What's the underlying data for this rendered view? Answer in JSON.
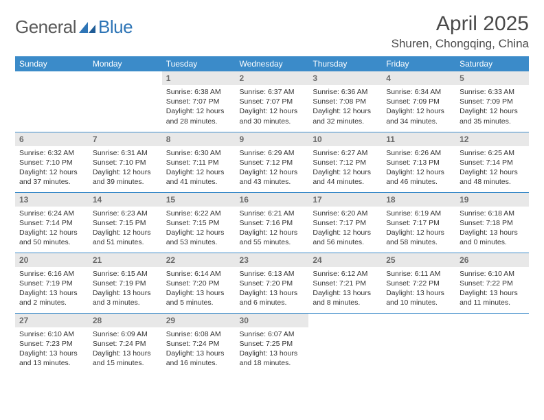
{
  "logo": {
    "general": "General",
    "blue": "Blue"
  },
  "title": "April 2025",
  "location": "Shuren, Chongqing, China",
  "colors": {
    "header_bg": "#3b8bc9",
    "header_text": "#ffffff",
    "daynum_bg": "#e8e8e8",
    "daynum_text": "#6a6a6a",
    "row_border": "#3b8bc9",
    "logo_general": "#5a5a5a",
    "logo_blue": "#2e75b6"
  },
  "day_headers": [
    "Sunday",
    "Monday",
    "Tuesday",
    "Wednesday",
    "Thursday",
    "Friday",
    "Saturday"
  ],
  "weeks": [
    [
      null,
      null,
      {
        "n": "1",
        "sr": "6:38 AM",
        "ss": "7:07 PM",
        "dl": "12 hours and 28 minutes."
      },
      {
        "n": "2",
        "sr": "6:37 AM",
        "ss": "7:07 PM",
        "dl": "12 hours and 30 minutes."
      },
      {
        "n": "3",
        "sr": "6:36 AM",
        "ss": "7:08 PM",
        "dl": "12 hours and 32 minutes."
      },
      {
        "n": "4",
        "sr": "6:34 AM",
        "ss": "7:09 PM",
        "dl": "12 hours and 34 minutes."
      },
      {
        "n": "5",
        "sr": "6:33 AM",
        "ss": "7:09 PM",
        "dl": "12 hours and 35 minutes."
      }
    ],
    [
      {
        "n": "6",
        "sr": "6:32 AM",
        "ss": "7:10 PM",
        "dl": "12 hours and 37 minutes."
      },
      {
        "n": "7",
        "sr": "6:31 AM",
        "ss": "7:10 PM",
        "dl": "12 hours and 39 minutes."
      },
      {
        "n": "8",
        "sr": "6:30 AM",
        "ss": "7:11 PM",
        "dl": "12 hours and 41 minutes."
      },
      {
        "n": "9",
        "sr": "6:29 AM",
        "ss": "7:12 PM",
        "dl": "12 hours and 43 minutes."
      },
      {
        "n": "10",
        "sr": "6:27 AM",
        "ss": "7:12 PM",
        "dl": "12 hours and 44 minutes."
      },
      {
        "n": "11",
        "sr": "6:26 AM",
        "ss": "7:13 PM",
        "dl": "12 hours and 46 minutes."
      },
      {
        "n": "12",
        "sr": "6:25 AM",
        "ss": "7:14 PM",
        "dl": "12 hours and 48 minutes."
      }
    ],
    [
      {
        "n": "13",
        "sr": "6:24 AM",
        "ss": "7:14 PM",
        "dl": "12 hours and 50 minutes."
      },
      {
        "n": "14",
        "sr": "6:23 AM",
        "ss": "7:15 PM",
        "dl": "12 hours and 51 minutes."
      },
      {
        "n": "15",
        "sr": "6:22 AM",
        "ss": "7:15 PM",
        "dl": "12 hours and 53 minutes."
      },
      {
        "n": "16",
        "sr": "6:21 AM",
        "ss": "7:16 PM",
        "dl": "12 hours and 55 minutes."
      },
      {
        "n": "17",
        "sr": "6:20 AM",
        "ss": "7:17 PM",
        "dl": "12 hours and 56 minutes."
      },
      {
        "n": "18",
        "sr": "6:19 AM",
        "ss": "7:17 PM",
        "dl": "12 hours and 58 minutes."
      },
      {
        "n": "19",
        "sr": "6:18 AM",
        "ss": "7:18 PM",
        "dl": "13 hours and 0 minutes."
      }
    ],
    [
      {
        "n": "20",
        "sr": "6:16 AM",
        "ss": "7:19 PM",
        "dl": "13 hours and 2 minutes."
      },
      {
        "n": "21",
        "sr": "6:15 AM",
        "ss": "7:19 PM",
        "dl": "13 hours and 3 minutes."
      },
      {
        "n": "22",
        "sr": "6:14 AM",
        "ss": "7:20 PM",
        "dl": "13 hours and 5 minutes."
      },
      {
        "n": "23",
        "sr": "6:13 AM",
        "ss": "7:20 PM",
        "dl": "13 hours and 6 minutes."
      },
      {
        "n": "24",
        "sr": "6:12 AM",
        "ss": "7:21 PM",
        "dl": "13 hours and 8 minutes."
      },
      {
        "n": "25",
        "sr": "6:11 AM",
        "ss": "7:22 PM",
        "dl": "13 hours and 10 minutes."
      },
      {
        "n": "26",
        "sr": "6:10 AM",
        "ss": "7:22 PM",
        "dl": "13 hours and 11 minutes."
      }
    ],
    [
      {
        "n": "27",
        "sr": "6:10 AM",
        "ss": "7:23 PM",
        "dl": "13 hours and 13 minutes."
      },
      {
        "n": "28",
        "sr": "6:09 AM",
        "ss": "7:24 PM",
        "dl": "13 hours and 15 minutes."
      },
      {
        "n": "29",
        "sr": "6:08 AM",
        "ss": "7:24 PM",
        "dl": "13 hours and 16 minutes."
      },
      {
        "n": "30",
        "sr": "6:07 AM",
        "ss": "7:25 PM",
        "dl": "13 hours and 18 minutes."
      },
      null,
      null,
      null
    ]
  ],
  "labels": {
    "sunrise": "Sunrise:",
    "sunset": "Sunset:",
    "daylight": "Daylight:"
  }
}
